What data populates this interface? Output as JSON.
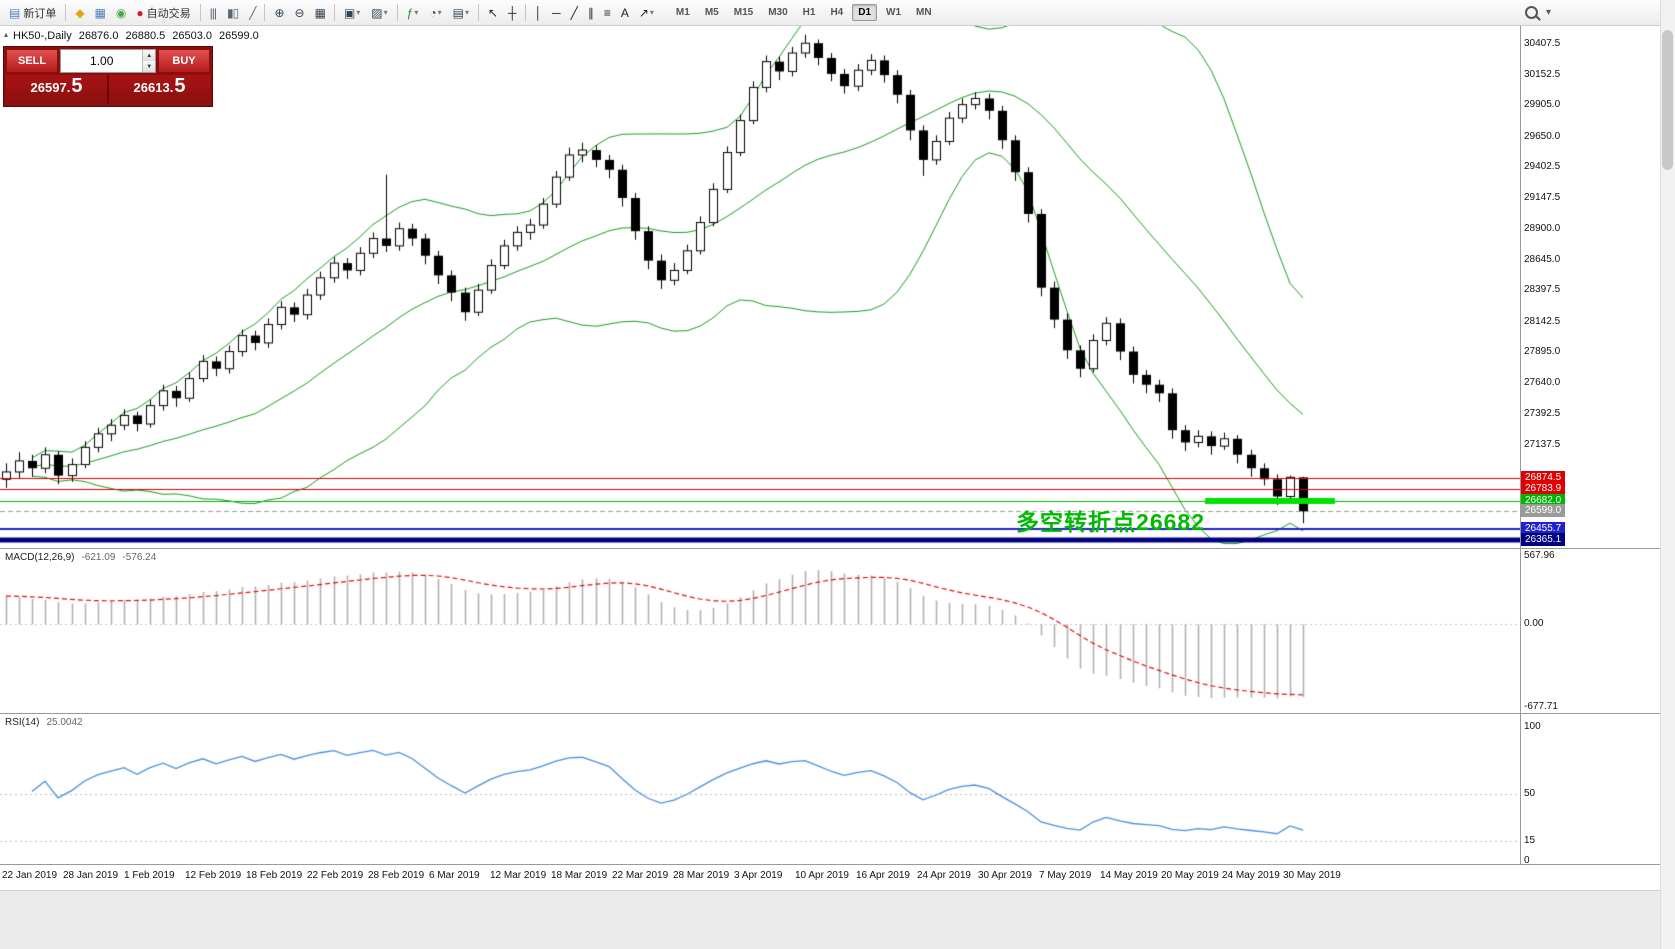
{
  "toolbar": {
    "items": [
      {
        "type": "btn",
        "name": "new-order-button",
        "icon": "▤",
        "icon_name": "new-order-icon",
        "icon_color": "#4f81bd",
        "label": "新订单"
      },
      {
        "type": "sep"
      },
      {
        "type": "icon",
        "name": "mql5-community-icon",
        "glyph": "◆",
        "color": "#e2a418"
      },
      {
        "type": "icon",
        "name": "market-watch-icon",
        "glyph": "▦",
        "color": "#4f81bd"
      },
      {
        "type": "icon",
        "name": "data-window-icon",
        "glyph": "◉",
        "color": "#4aa84a"
      },
      {
        "type": "btn",
        "name": "autotrade-button",
        "icon": "●",
        "icon_name": "autotrade-status-icon",
        "icon_color": "#d42020",
        "label": "自动交易"
      },
      {
        "type": "sep"
      },
      {
        "type": "icon",
        "name": "bar-chart-mode-icon",
        "glyph": "|||",
        "color": "#556677"
      },
      {
        "type": "icon",
        "name": "candlestick-mode-icon",
        "glyph": "▮▯",
        "color": "#556677"
      },
      {
        "type": "icon",
        "name": "line-chart-mode-icon",
        "glyph": "╱",
        "color": "#556677"
      },
      {
        "type": "sep"
      },
      {
        "type": "icon",
        "name": "zoom-in-icon",
        "glyph": "⊕",
        "color": "#334455"
      },
      {
        "type": "icon",
        "name": "zoom-out-icon",
        "glyph": "⊖",
        "color": "#334455"
      },
      {
        "type": "icon",
        "name": "tile-windows-icon",
        "glyph": "▦",
        "color": "#334455"
      },
      {
        "type": "sep"
      },
      {
        "type": "icon",
        "name": "new-chart-icon",
        "glyph": "▣",
        "color": "#334455",
        "dd": true
      },
      {
        "type": "icon",
        "name": "profiles-icon",
        "glyph": "▨",
        "color": "#334455",
        "dd": true
      },
      {
        "type": "sep"
      },
      {
        "type": "icon",
        "name": "indicators-icon",
        "glyph": "ƒ",
        "color": "#2e8b2e",
        "dd": true
      },
      {
        "type": "icon",
        "name": "periods-icon",
        "glyph": "◔",
        "color": "#334455",
        "dd": true
      },
      {
        "type": "icon",
        "name": "templates-icon",
        "glyph": "▤",
        "color": "#334455",
        "dd": true
      },
      {
        "type": "sep"
      },
      {
        "type": "icon",
        "name": "cursor-icon",
        "glyph": "↖",
        "color": "#222222"
      },
      {
        "type": "icon",
        "name": "crosshair-icon",
        "glyph": "┼",
        "color": "#222222"
      },
      {
        "type": "sep"
      },
      {
        "type": "icon",
        "name": "vertical-line-icon",
        "glyph": "│",
        "color": "#222222"
      },
      {
        "type": "icon",
        "name": "horizontal-line-icon",
        "glyph": "─",
        "color": "#222222"
      },
      {
        "type": "icon",
        "name": "trendline-icon",
        "glyph": "╱",
        "color": "#222222"
      },
      {
        "type": "icon",
        "name": "channel-icon",
        "glyph": "∥",
        "color": "#222222"
      },
      {
        "type": "icon",
        "name": "fibonacci-icon",
        "glyph": "≡",
        "color": "#222222"
      },
      {
        "type": "icon",
        "name": "text-icon",
        "glyph": "A",
        "color": "#222222"
      },
      {
        "type": "icon",
        "name": "arrows-icon",
        "glyph": "↗",
        "color": "#222222",
        "dd": true
      }
    ],
    "timeframes": {
      "items": [
        "M1",
        "M5",
        "M15",
        "M30",
        "H1",
        "H4",
        "D1",
        "W1",
        "MN"
      ],
      "active": "D1"
    },
    "right_items": [
      {
        "name": "search-icon",
        "kind": "magnifier"
      },
      {
        "name": "chevron-down-icon",
        "glyph": "▾"
      }
    ]
  },
  "chart": {
    "header": {
      "collapse_glyph": "▴",
      "symbol_period": "HK50-,Daily",
      "open": "26876.0",
      "high": "26880.5",
      "low": "26503.0",
      "close": "26599.0"
    },
    "annotation": {
      "text": "多空转折点26682",
      "color": "#00bb00"
    },
    "y_axis_labels": [
      "30407.5",
      "30152.5",
      "29905.0",
      "29650.0",
      "29402.5",
      "29147.5",
      "28900.0",
      "28645.0",
      "28397.5",
      "28142.5",
      "27895.0",
      "27640.0",
      "27392.5",
      "27137.5"
    ],
    "price_lines": [
      {
        "label": "26874.5",
        "price": 26874.5,
        "color": "#dd0000",
        "width": 1,
        "style": "solid"
      },
      {
        "label": "26783.9",
        "price": 26783.9,
        "color": "#dd0000",
        "width": 1,
        "style": "solid"
      },
      {
        "label": "26682.0",
        "price": 26682.0,
        "color": "#00b400",
        "width": 1,
        "style": "solid"
      },
      {
        "label": "26599.0",
        "price": 26599.0,
        "color": "#9a9a9a",
        "width": 1,
        "style": "dash"
      },
      {
        "label": "26455.7",
        "price": 26455.7,
        "color": "#2222cc",
        "width": 2,
        "style": "solid"
      },
      {
        "label": "26365.1",
        "price": 26365.1,
        "color": "#000080",
        "width": 5,
        "style": "solid"
      }
    ],
    "highlight_segment": {
      "price": 26682,
      "from_index": 92,
      "to_x": 1335,
      "color": "#00e000",
      "width": 6
    }
  },
  "trade_panel": {
    "sell_label": "SELL",
    "buy_label": "BUY",
    "volume": "1.00",
    "spin_up": "▲",
    "spin_down": "▼",
    "sell_price": {
      "prefix": "26597.",
      "pip": "5"
    },
    "buy_price": {
      "prefix": "26613.",
      "pip": "5"
    }
  },
  "macd": {
    "name": "MACD(12,26,9)",
    "value1": "-621.09",
    "value2": "-576.24",
    "scale_max": 567.96,
    "scale_min": -677.71,
    "axis_labels": {
      "max": "567.96",
      "zero": "0.00",
      "min": "-677.71"
    },
    "fast": 12,
    "slow": 26,
    "signal": 9,
    "histogram_color": "#b0b0b0",
    "signal_color": "#e01010"
  },
  "rsi": {
    "name": "RSI(14)",
    "value": "25.0042",
    "period": 14,
    "axis_labels": [
      {
        "text": "100",
        "value": 100
      },
      {
        "text": "50",
        "value": 50
      },
      {
        "text": "15",
        "value": 15
      },
      {
        "text": "0",
        "value": 0
      }
    ],
    "levels": [
      50,
      15
    ],
    "line_color": "#4a8fe0"
  },
  "time_axis": {
    "dates": [
      "22 Jan 2019",
      "28 Jan 2019",
      "1 Feb 2019",
      "12 Feb 2019",
      "18 Feb 2019",
      "22 Feb 2019",
      "28 Feb 2019",
      "6 Mar 2019",
      "12 Mar 2019",
      "18 Mar 2019",
      "22 Mar 2019",
      "28 Mar 2019",
      "3 Apr 2019",
      "10 Apr 2019",
      "16 Apr 2019",
      "24 Apr 2019",
      "30 Apr 2019",
      "7 May 2019",
      "14 May 2019",
      "20 May 2019",
      "24 May 2019",
      "30 May 2019"
    ]
  },
  "chart_data": {
    "type": "candlestick",
    "symbol": "HK50",
    "period": "Daily",
    "ylim": [
      26300,
      30550
    ],
    "bollinger": {
      "period": 20,
      "deviation": 2,
      "color": "#1e9b1e"
    },
    "candles": [
      [
        26860,
        26990,
        26790,
        26920
      ],
      [
        26920,
        27080,
        26870,
        27010
      ],
      [
        27010,
        27060,
        26880,
        26950
      ],
      [
        26950,
        27120,
        26910,
        27060
      ],
      [
        27060,
        27090,
        26820,
        26890
      ],
      [
        26890,
        27030,
        26840,
        26980
      ],
      [
        26980,
        27170,
        26950,
        27120
      ],
      [
        27120,
        27280,
        27080,
        27230
      ],
      [
        27230,
        27350,
        27170,
        27300
      ],
      [
        27300,
        27430,
        27260,
        27380
      ],
      [
        27380,
        27410,
        27250,
        27310
      ],
      [
        27310,
        27510,
        27280,
        27460
      ],
      [
        27460,
        27630,
        27420,
        27580
      ],
      [
        27580,
        27620,
        27450,
        27520
      ],
      [
        27520,
        27730,
        27490,
        27680
      ],
      [
        27680,
        27870,
        27650,
        27820
      ],
      [
        27820,
        27860,
        27700,
        27760
      ],
      [
        27760,
        27950,
        27720,
        27900
      ],
      [
        27900,
        28080,
        27860,
        28030
      ],
      [
        28030,
        28070,
        27910,
        27970
      ],
      [
        27970,
        28170,
        27930,
        28120
      ],
      [
        28120,
        28310,
        28080,
        28260
      ],
      [
        28260,
        28300,
        28140,
        28200
      ],
      [
        28200,
        28410,
        28160,
        28360
      ],
      [
        28360,
        28550,
        28320,
        28500
      ],
      [
        28500,
        28670,
        28460,
        28620
      ],
      [
        28620,
        28660,
        28490,
        28560
      ],
      [
        28560,
        28750,
        28520,
        28700
      ],
      [
        28700,
        28870,
        28660,
        28820
      ],
      [
        28820,
        29340,
        28710,
        28760
      ],
      [
        28760,
        28950,
        28720,
        28900
      ],
      [
        28900,
        28940,
        28760,
        28820
      ],
      [
        28820,
        28860,
        28610,
        28680
      ],
      [
        28680,
        28720,
        28450,
        28520
      ],
      [
        28520,
        28560,
        28310,
        28380
      ],
      [
        28380,
        28420,
        28150,
        28220
      ],
      [
        28220,
        28450,
        28190,
        28400
      ],
      [
        28400,
        28650,
        28370,
        28600
      ],
      [
        28600,
        28810,
        28570,
        28760
      ],
      [
        28760,
        28920,
        28720,
        28870
      ],
      [
        28870,
        28980,
        28810,
        28930
      ],
      [
        28930,
        29150,
        28900,
        29100
      ],
      [
        29100,
        29370,
        29070,
        29320
      ],
      [
        29320,
        29560,
        29290,
        29500
      ],
      [
        29500,
        29600,
        29440,
        29540
      ],
      [
        29540,
        29580,
        29400,
        29460
      ],
      [
        29460,
        29500,
        29310,
        29380
      ],
      [
        29380,
        29420,
        29080,
        29150
      ],
      [
        29150,
        29190,
        28810,
        28880
      ],
      [
        28880,
        28920,
        28570,
        28640
      ],
      [
        28640,
        28690,
        28410,
        28480
      ],
      [
        28480,
        28620,
        28440,
        28560
      ],
      [
        28560,
        28770,
        28530,
        28720
      ],
      [
        28720,
        29000,
        28690,
        28950
      ],
      [
        28950,
        29270,
        28920,
        29220
      ],
      [
        29220,
        29570,
        29190,
        29520
      ],
      [
        29520,
        29830,
        29490,
        29780
      ],
      [
        29780,
        30100,
        29750,
        30050
      ],
      [
        30050,
        30310,
        30010,
        30260
      ],
      [
        30260,
        30300,
        30110,
        30180
      ],
      [
        30180,
        30380,
        30140,
        30330
      ],
      [
        30330,
        30480,
        30290,
        30410
      ],
      [
        30410,
        30440,
        30230,
        30290
      ],
      [
        30290,
        30330,
        30100,
        30160
      ],
      [
        30160,
        30200,
        30000,
        30060
      ],
      [
        30060,
        30240,
        30020,
        30190
      ],
      [
        30190,
        30320,
        30150,
        30270
      ],
      [
        30270,
        30310,
        30090,
        30150
      ],
      [
        30150,
        30190,
        29920,
        29990
      ],
      [
        29990,
        30030,
        29620,
        29700
      ],
      [
        29700,
        29740,
        29330,
        29460
      ],
      [
        29460,
        29660,
        29420,
        29610
      ],
      [
        29610,
        29850,
        29580,
        29800
      ],
      [
        29800,
        29960,
        29760,
        29910
      ],
      [
        29910,
        30010,
        29870,
        29960
      ],
      [
        29960,
        30000,
        29790,
        29860
      ],
      [
        29860,
        29900,
        29550,
        29620
      ],
      [
        29620,
        29660,
        29290,
        29360
      ],
      [
        29360,
        29400,
        28950,
        29020
      ],
      [
        29020,
        29060,
        28350,
        28420
      ],
      [
        28420,
        28470,
        28090,
        28160
      ],
      [
        28160,
        28210,
        27840,
        27910
      ],
      [
        27910,
        27950,
        27690,
        27760
      ],
      [
        27760,
        28040,
        27730,
        27990
      ],
      [
        27990,
        28180,
        27950,
        28130
      ],
      [
        28130,
        28170,
        27830,
        27900
      ],
      [
        27900,
        27940,
        27640,
        27710
      ],
      [
        27710,
        27750,
        27560,
        27630
      ],
      [
        27630,
        27670,
        27490,
        27560
      ],
      [
        27560,
        27600,
        27190,
        27260
      ],
      [
        27260,
        27300,
        27090,
        27160
      ],
      [
        27160,
        27260,
        27120,
        27210
      ],
      [
        27210,
        27250,
        27060,
        27130
      ],
      [
        27130,
        27240,
        27100,
        27190
      ],
      [
        27190,
        27220,
        26990,
        27060
      ],
      [
        27060,
        27100,
        26880,
        26950
      ],
      [
        26950,
        26990,
        26810,
        26860
      ],
      [
        26860,
        26900,
        26650,
        26720
      ],
      [
        26720,
        26890,
        26680,
        26876
      ],
      [
        26876,
        26880.5,
        26503,
        26599
      ]
    ]
  }
}
